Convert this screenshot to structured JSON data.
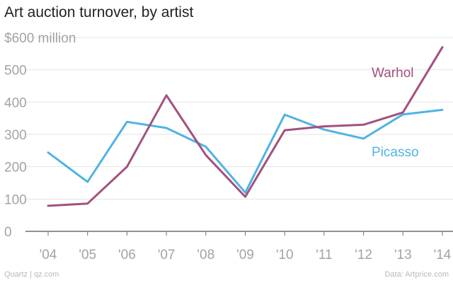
{
  "chart_data": {
    "type": "line",
    "title": "Art auction turnover, by artist",
    "ylabel": "$600 million",
    "categories": [
      "'04",
      "'05",
      "'06",
      "'07",
      "'08",
      "'09",
      "'10",
      "'11",
      "'12",
      "'13",
      "'14"
    ],
    "y_ticks": [
      "0",
      "100",
      "200",
      "300",
      "400",
      "500",
      "$600 million"
    ],
    "ylim": [
      0,
      600
    ],
    "grid": true,
    "series": [
      {
        "name": "Warhol",
        "color": "#a1517f",
        "values": [
          79,
          86,
          200,
          421,
          236,
          107,
          313,
          325,
          330,
          368,
          570
        ]
      },
      {
        "name": "Picasso",
        "color": "#51b2e5",
        "values": [
          244,
          153,
          339,
          320,
          262,
          120,
          361,
          315,
          287,
          362,
          376
        ]
      }
    ]
  },
  "footer": {
    "source_left": "Quartz | qz.com",
    "source_right": "Data: Artprice.com"
  }
}
